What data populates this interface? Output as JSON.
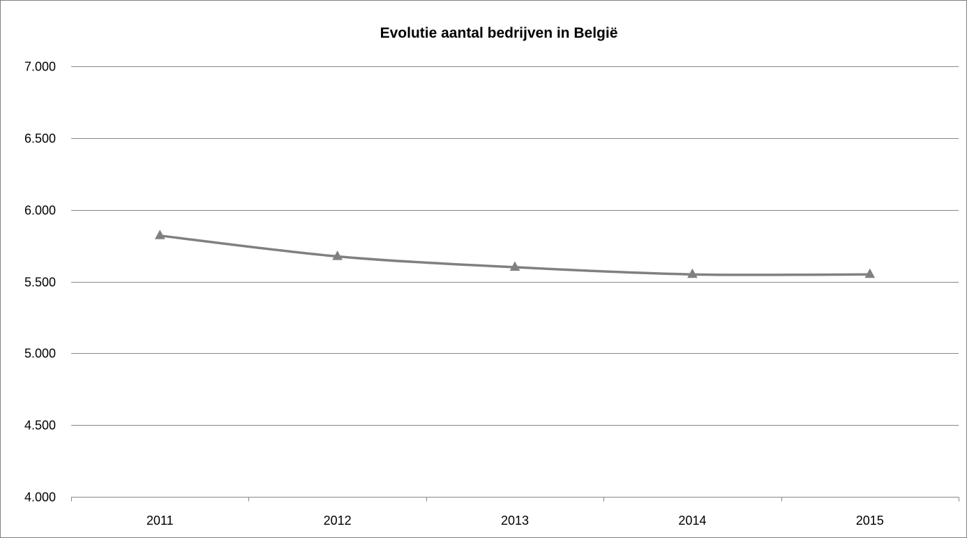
{
  "chart_data": {
    "type": "line",
    "title": "Evolutie aantal bedrijven in België",
    "xlabel": "",
    "ylabel": "",
    "categories": [
      "2011",
      "2012",
      "2013",
      "2014",
      "2015"
    ],
    "series": [
      {
        "values": [
          5820,
          5675,
          5600,
          5550,
          5550
        ],
        "marker": "triangle",
        "color": "#808080"
      }
    ],
    "ylim": [
      4000,
      7000
    ],
    "yticks": [
      4000,
      4500,
      5000,
      5500,
      6000,
      6500,
      7000
    ],
    "ytick_labels": [
      "4.000",
      "4.500",
      "5.000",
      "5.500",
      "6.000",
      "6.500",
      "7.000"
    ],
    "grid": true,
    "legend": "none"
  },
  "colors": {
    "line": "#808080",
    "grid": "#868686",
    "axis": "#868686",
    "frame": "#7f7f7f"
  }
}
